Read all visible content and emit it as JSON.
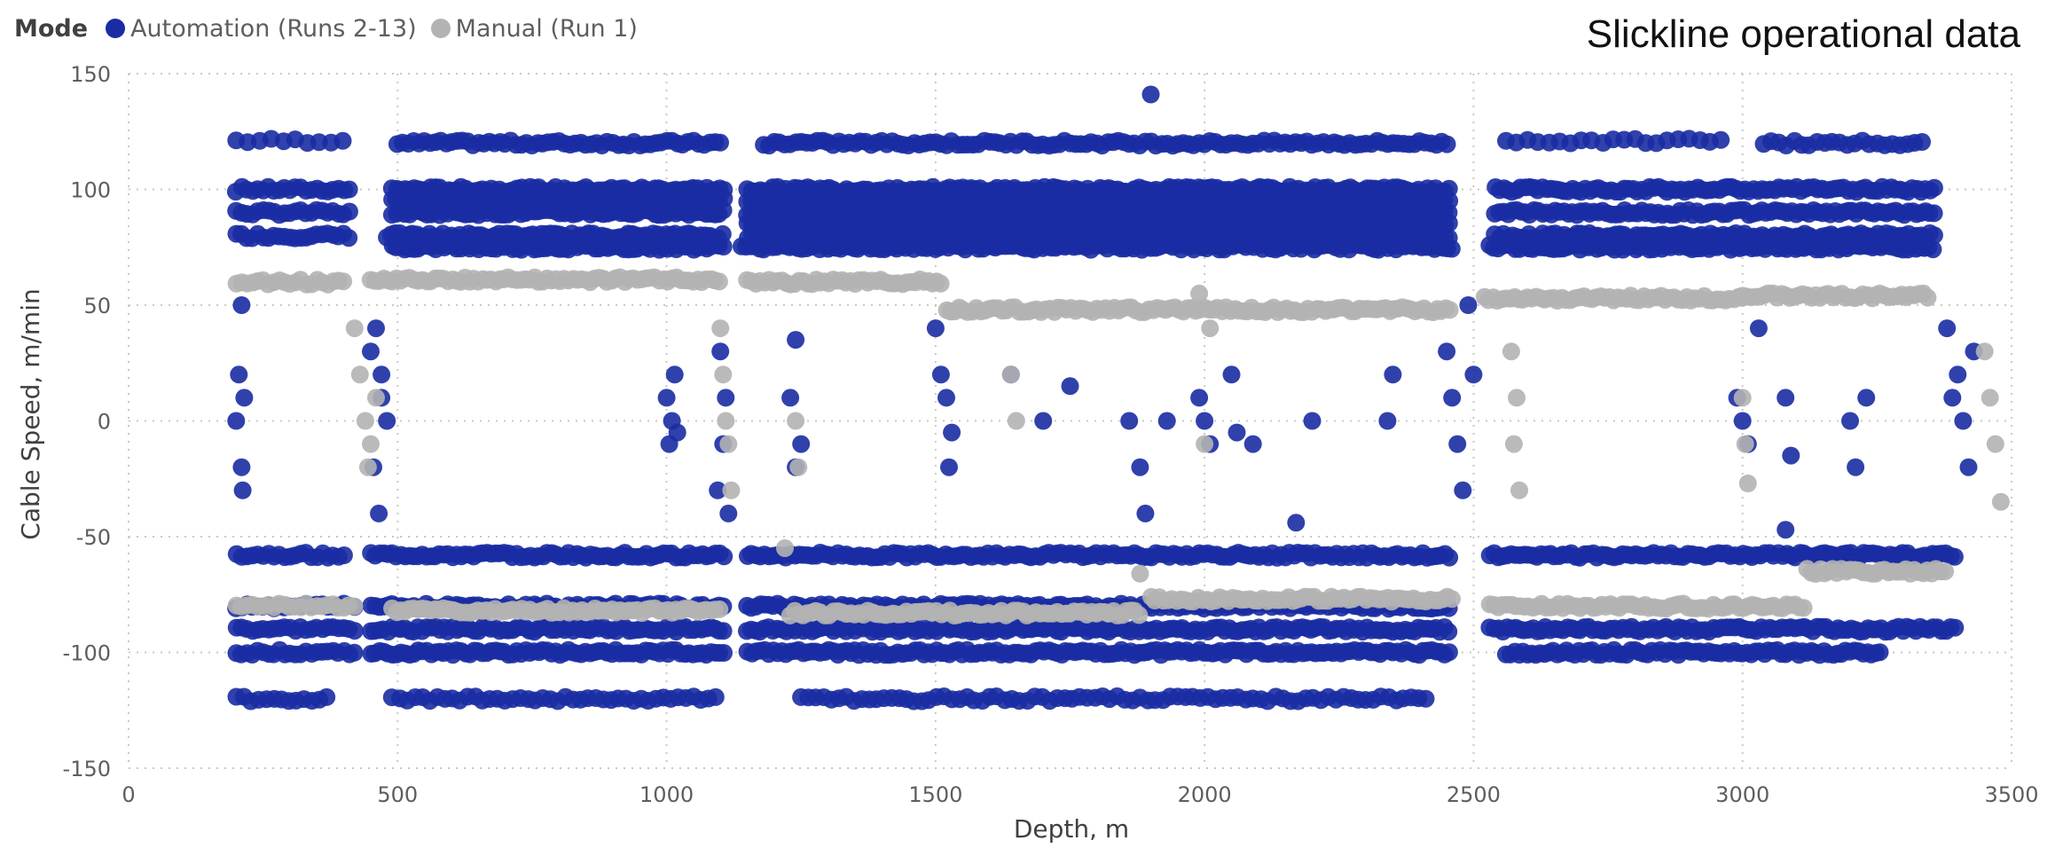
{
  "legend": {
    "title": "Mode",
    "items": [
      {
        "label": "Automation (Runs 2-13)",
        "color": "#1a2ca3"
      },
      {
        "label": "Manual (Run 1)",
        "color": "#b3b3b3"
      }
    ]
  },
  "corner_title": "Slickline operational data",
  "chart_data": {
    "type": "scatter",
    "title": "",
    "xlabel": "Depth, m",
    "ylabel": "Cable Speed, m/min",
    "xlim": [
      0,
      3500
    ],
    "ylim": [
      -150,
      150
    ],
    "xticks": [
      0,
      500,
      1000,
      1500,
      2000,
      2500,
      3000,
      3500
    ],
    "yticks": [
      -150,
      -100,
      -50,
      0,
      50,
      100,
      150
    ],
    "grid": "dotted",
    "legend_position": "top-left",
    "series": [
      {
        "name": "Automation (Runs 2-13)",
        "color": "#1a2ca3",
        "bands": [
          {
            "x0": 200,
            "x1": 410,
            "y": 121,
            "step": 22
          },
          {
            "x0": 200,
            "x1": 410,
            "y": 100,
            "step": 10
          },
          {
            "x0": 200,
            "x1": 410,
            "y": 90,
            "step": 10
          },
          {
            "x0": 200,
            "x1": 410,
            "y": 80,
            "step": 10
          },
          {
            "x0": 500,
            "x1": 1100,
            "y": 120,
            "step": 10
          },
          {
            "x0": 490,
            "x1": 1110,
            "y": 100,
            "step": 8
          },
          {
            "x0": 490,
            "x1": 1110,
            "y": 95,
            "step": 8
          },
          {
            "x0": 490,
            "x1": 1110,
            "y": 90,
            "step": 8
          },
          {
            "x0": 480,
            "x1": 1110,
            "y": 80,
            "step": 8
          },
          {
            "x0": 490,
            "x1": 1110,
            "y": 75,
            "step": 8
          },
          {
            "x0": 1180,
            "x1": 2450,
            "y": 120,
            "step": 10
          },
          {
            "x0": 1150,
            "x1": 2460,
            "y": 100,
            "step": 8
          },
          {
            "x0": 1150,
            "x1": 2460,
            "y": 95,
            "step": 8
          },
          {
            "x0": 1150,
            "x1": 2460,
            "y": 90,
            "step": 8
          },
          {
            "x0": 1150,
            "x1": 2460,
            "y": 85,
            "step": 8
          },
          {
            "x0": 1150,
            "x1": 2460,
            "y": 80,
            "step": 8
          },
          {
            "x0": 1140,
            "x1": 2460,
            "y": 75,
            "step": 8
          },
          {
            "x0": 2560,
            "x1": 2960,
            "y": 121,
            "step": 20
          },
          {
            "x0": 3040,
            "x1": 3340,
            "y": 120,
            "step": 14
          },
          {
            "x0": 2540,
            "x1": 3360,
            "y": 100,
            "step": 8
          },
          {
            "x0": 2540,
            "x1": 3360,
            "y": 90,
            "step": 8
          },
          {
            "x0": 2540,
            "x1": 3360,
            "y": 80,
            "step": 8
          },
          {
            "x0": 2530,
            "x1": 3360,
            "y": 75,
            "step": 8
          },
          {
            "x0": 200,
            "x1": 400,
            "y": -58,
            "step": 10
          },
          {
            "x0": 200,
            "x1": 420,
            "y": -80,
            "step": 10
          },
          {
            "x0": 200,
            "x1": 420,
            "y": -90,
            "step": 10
          },
          {
            "x0": 200,
            "x1": 420,
            "y": -100,
            "step": 10
          },
          {
            "x0": 200,
            "x1": 370,
            "y": -120,
            "step": 14
          },
          {
            "x0": 450,
            "x1": 1110,
            "y": -58,
            "step": 8
          },
          {
            "x0": 450,
            "x1": 1110,
            "y": -80,
            "step": 8
          },
          {
            "x0": 450,
            "x1": 1110,
            "y": -90,
            "step": 8
          },
          {
            "x0": 450,
            "x1": 1110,
            "y": -100,
            "step": 8
          },
          {
            "x0": 490,
            "x1": 1100,
            "y": -120,
            "step": 14
          },
          {
            "x0": 1150,
            "x1": 2460,
            "y": -58,
            "step": 8
          },
          {
            "x0": 1150,
            "x1": 2460,
            "y": -80,
            "step": 8
          },
          {
            "x0": 1150,
            "x1": 2460,
            "y": -90,
            "step": 8
          },
          {
            "x0": 1150,
            "x1": 2460,
            "y": -100,
            "step": 8
          },
          {
            "x0": 1250,
            "x1": 2420,
            "y": -120,
            "step": 14
          },
          {
            "x0": 2530,
            "x1": 3400,
            "y": -58,
            "step": 8
          },
          {
            "x0": 2530,
            "x1": 3400,
            "y": -90,
            "step": 8
          },
          {
            "x0": 2560,
            "x1": 3260,
            "y": -100,
            "step": 8
          }
        ],
        "points": [
          [
            1900,
            141
          ],
          [
            1890,
            -40
          ],
          [
            2170,
            -44
          ],
          [
            3080,
            -47
          ],
          [
            210,
            50
          ],
          [
            205,
            20
          ],
          [
            210,
            -20
          ],
          [
            215,
            10
          ],
          [
            200,
            0
          ],
          [
            212,
            -30
          ],
          [
            450,
            30
          ],
          [
            460,
            40
          ],
          [
            470,
            10
          ],
          [
            480,
            0
          ],
          [
            455,
            -20
          ],
          [
            465,
            -40
          ],
          [
            470,
            20
          ],
          [
            1000,
            10
          ],
          [
            1010,
            0
          ],
          [
            1020,
            -5
          ],
          [
            1015,
            20
          ],
          [
            1005,
            -10
          ],
          [
            1100,
            30
          ],
          [
            1110,
            10
          ],
          [
            1105,
            -10
          ],
          [
            1095,
            -30
          ],
          [
            1115,
            -40
          ],
          [
            1240,
            35
          ],
          [
            1230,
            10
          ],
          [
            1250,
            -10
          ],
          [
            1240,
            -20
          ],
          [
            1520,
            10
          ],
          [
            1530,
            -5
          ],
          [
            1525,
            -20
          ],
          [
            1500,
            40
          ],
          [
            1510,
            20
          ],
          [
            1700,
            0
          ],
          [
            1640,
            20
          ],
          [
            1750,
            15
          ],
          [
            1860,
            0
          ],
          [
            1880,
            -20
          ],
          [
            1930,
            0
          ],
          [
            1990,
            10
          ],
          [
            2000,
            0
          ],
          [
            2010,
            -10
          ],
          [
            2050,
            20
          ],
          [
            2060,
            -5
          ],
          [
            2090,
            -10
          ],
          [
            2200,
            0
          ],
          [
            2340,
            0
          ],
          [
            2350,
            20
          ],
          [
            2450,
            30
          ],
          [
            2460,
            10
          ],
          [
            2470,
            -10
          ],
          [
            2480,
            -30
          ],
          [
            2490,
            50
          ],
          [
            2500,
            20
          ],
          [
            2990,
            10
          ],
          [
            3000,
            0
          ],
          [
            3010,
            -10
          ],
          [
            3030,
            40
          ],
          [
            3080,
            10
          ],
          [
            3090,
            -15
          ],
          [
            3200,
            0
          ],
          [
            3210,
            -20
          ],
          [
            3230,
            10
          ],
          [
            3380,
            40
          ],
          [
            3400,
            20
          ],
          [
            3410,
            0
          ],
          [
            3420,
            -20
          ],
          [
            3390,
            10
          ],
          [
            3430,
            30
          ]
        ]
      },
      {
        "name": "Manual (Run 1)",
        "color": "#b3b3b3",
        "bands": [
          {
            "x0": 200,
            "x1": 400,
            "y": 60,
            "step": 10
          },
          {
            "x0": 450,
            "x1": 1100,
            "y": 61,
            "step": 8
          },
          {
            "x0": 1150,
            "x1": 1510,
            "y": 60,
            "step": 8
          },
          {
            "x0": 1520,
            "x1": 2460,
            "y": 48,
            "step": 8
          },
          {
            "x0": 2520,
            "x1": 3000,
            "y": 53,
            "step": 8
          },
          {
            "x0": 3000,
            "x1": 3350,
            "y": 54,
            "step": 8
          },
          {
            "x0": 200,
            "x1": 420,
            "y": -80,
            "step": 10
          },
          {
            "x0": 490,
            "x1": 1100,
            "y": -82,
            "step": 8
          },
          {
            "x0": 1230,
            "x1": 1880,
            "y": -83,
            "step": 8
          },
          {
            "x0": 1900,
            "x1": 2460,
            "y": -77,
            "step": 8
          },
          {
            "x0": 2530,
            "x1": 3120,
            "y": -80,
            "step": 8
          },
          {
            "x0": 3120,
            "x1": 3380,
            "y": -65,
            "step": 8
          }
        ],
        "points": [
          [
            420,
            40
          ],
          [
            430,
            20
          ],
          [
            440,
            0
          ],
          [
            445,
            -20
          ],
          [
            450,
            -10
          ],
          [
            460,
            10
          ],
          [
            1100,
            40
          ],
          [
            1105,
            20
          ],
          [
            1110,
            0
          ],
          [
            1115,
            -10
          ],
          [
            1120,
            -30
          ],
          [
            1220,
            -55
          ],
          [
            1240,
            0
          ],
          [
            1245,
            -20
          ],
          [
            1640,
            20
          ],
          [
            1650,
            0
          ],
          [
            1880,
            -66
          ],
          [
            1990,
            55
          ],
          [
            2000,
            -10
          ],
          [
            2010,
            40
          ],
          [
            2570,
            30
          ],
          [
            2580,
            10
          ],
          [
            2575,
            -10
          ],
          [
            2585,
            -30
          ],
          [
            3000,
            10
          ],
          [
            3005,
            -10
          ],
          [
            3010,
            -27
          ],
          [
            3450,
            30
          ],
          [
            3460,
            10
          ],
          [
            3470,
            -10
          ],
          [
            3480,
            -35
          ]
        ]
      }
    ]
  }
}
